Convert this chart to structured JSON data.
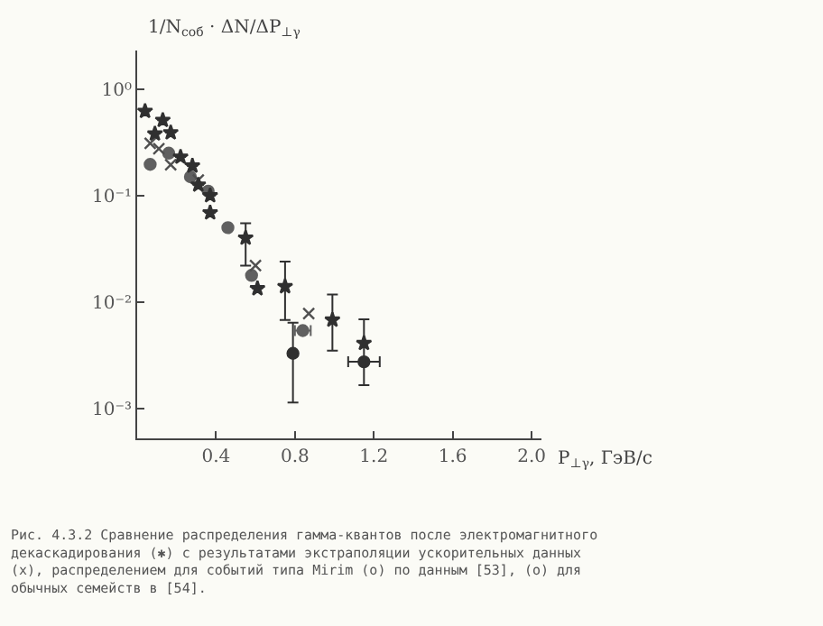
{
  "chart_data": {
    "type": "scatter",
    "xlabel": "P$_{⊥γ}$, ГэВ/с",
    "ylabel": "1/N$_{соб}$ · ΔN/ΔP$_{⊥γ}$",
    "log": "y",
    "xlim": [
      0,
      2.05
    ],
    "ylim": [
      0.000525,
      2.3
    ],
    "xticks": [
      0.4,
      0.8,
      1.2,
      1.6,
      {
        "value": 2,
        "label": "2.0"
      }
    ],
    "yticks": [
      {
        "value": 1,
        "label": "10⁰"
      },
      {
        "value": 0.1,
        "label": "10⁻¹"
      },
      {
        "value": 0.01,
        "label": "10⁻²"
      },
      {
        "value": 0.001,
        "label": "10⁻³"
      }
    ],
    "grid": false,
    "annotations": [
      "Рис. 4.3.2 Сравнение распределения гамма-квантов после электромагнитного декаскадирования (✱) с результатами экстраполяции ускорительных данных (x), распределением для событий типа Mirim (o) по данным [53], (o) для обычных семейств в [54]."
    ],
    "series": [
      {
        "color": "#303030",
        "marker": "star",
        "x": [
          0.04,
          0.13,
          0.09,
          0.17,
          0.22,
          0.28,
          0.31,
          0.37,
          0.37,
          0.55,
          0.61,
          0.75,
          0.99,
          1.15
        ],
        "values": [
          0.62,
          0.51,
          0.38,
          0.39,
          0.23,
          0.19,
          0.126,
          0.1,
          0.069,
          0.04,
          0.0134,
          0.014,
          0.0068,
          0.0041
        ],
        "errors": [
          null,
          null,
          null,
          null,
          null,
          null,
          null,
          null,
          null,
          [
            0.022,
            0.055
          ],
          null,
          [
            0.0068,
            0.024
          ],
          [
            0.0035,
            0.0118
          ],
          [
            0.00166,
            0.0069
          ]
        ]
      },
      {
        "color": "#505050",
        "marker": "cross",
        "x": [
          0.066,
          0.11,
          0.17,
          0.31,
          0.6,
          0.87
        ],
        "values": [
          0.31,
          0.275,
          0.195,
          0.14,
          0.022,
          0.0078
        ]
      },
      {
        "color": "#606060",
        "marker": "circle",
        "x": [
          0.066,
          0.16,
          0.27,
          0.36,
          0.46,
          0.58,
          0.84
        ],
        "values": [
          0.196,
          0.25,
          0.15,
          0.11,
          0.05,
          0.0178,
          0.0054
        ],
        "xerrors": [
          null,
          null,
          null,
          null,
          null,
          null,
          0.04
        ]
      },
      {
        "color": "#303030",
        "marker": "circle",
        "x": [
          0.79,
          1.15
        ],
        "values": [
          0.0033,
          0.00275
        ],
        "errors": [
          [
            0.00114,
            0.0064
          ],
          null
        ],
        "xerrors": [
          null,
          0.08
        ]
      }
    ]
  }
}
